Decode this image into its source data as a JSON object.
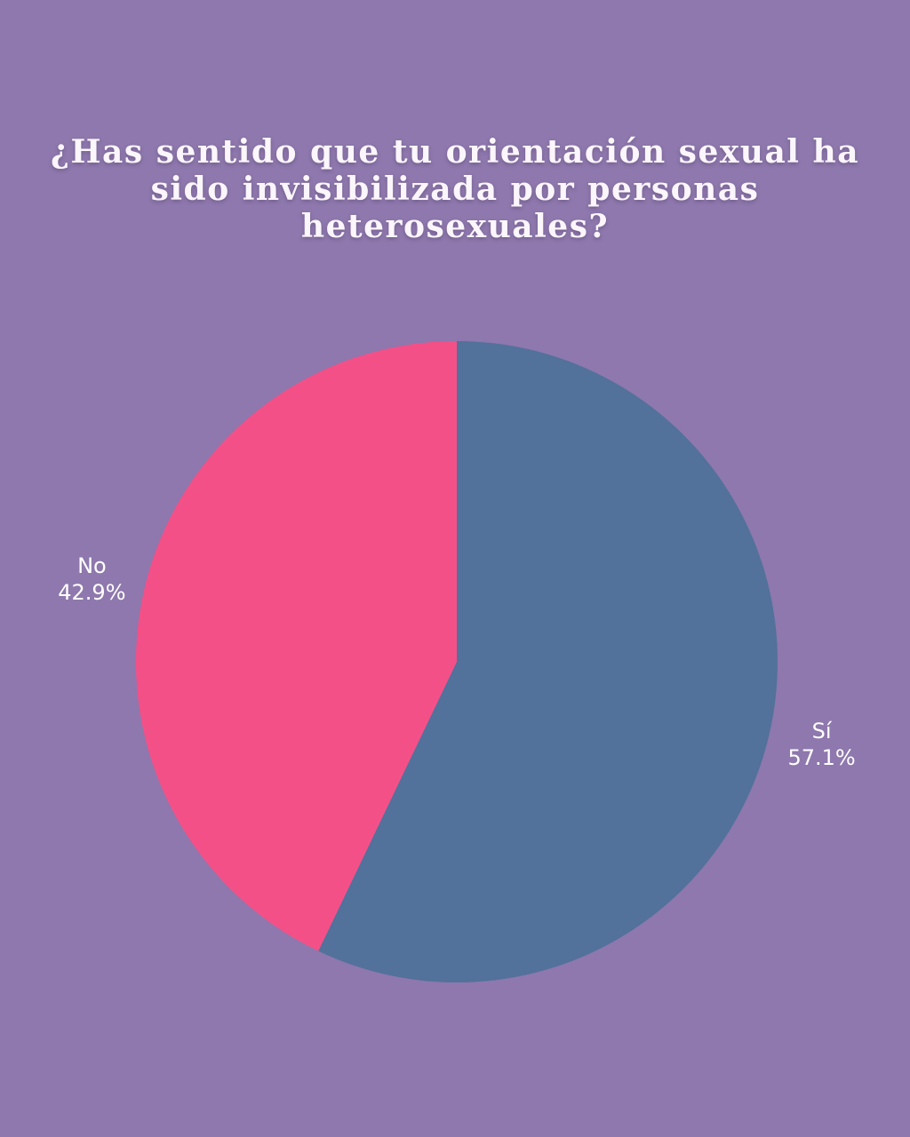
{
  "colors": {
    "background": "#8e78ad",
    "si": "#52719b",
    "no": "#f45088",
    "text": "#ffffff"
  },
  "chart_data": {
    "type": "pie",
    "title": "¿Has sentido que tu orientación sexual ha sido invisibilizada por personas heterosexuales?",
    "slices": [
      {
        "label": "Sí",
        "value": 57.1,
        "display": "57.1%",
        "color": "#52719b"
      },
      {
        "label": "No",
        "value": 42.9,
        "display": "42.9%",
        "color": "#f45088"
      }
    ],
    "start": "12 o'clock",
    "direction": "clockwise",
    "legend": "none",
    "labels": "outside"
  }
}
